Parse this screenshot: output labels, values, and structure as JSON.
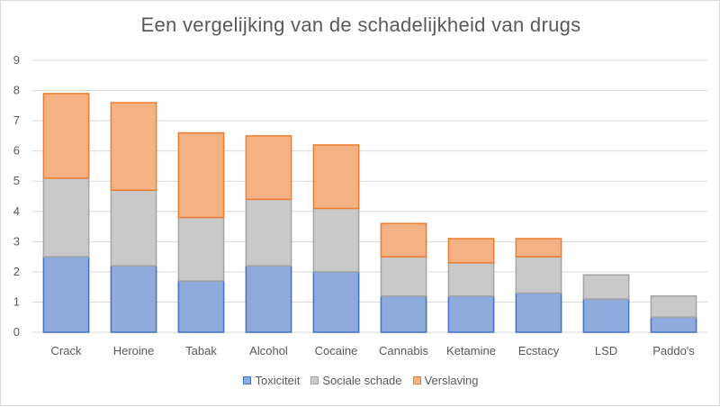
{
  "chart_data": {
    "type": "bar",
    "stacked": true,
    "title": "Een vergelijking van de schadelijkheid van drugs",
    "xlabel": "",
    "ylabel": "",
    "ylim": [
      0,
      9
    ],
    "yticks": [
      0,
      1,
      2,
      3,
      4,
      5,
      6,
      7,
      8,
      9
    ],
    "grid": true,
    "legend_position": "bottom",
    "categories": [
      "Crack",
      "Heroine",
      "Tabak",
      "Alcohol",
      "Cocaine",
      "Cannabis",
      "Ketamine",
      "Ecstacy",
      "LSD",
      "Paddo's"
    ],
    "series": [
      {
        "name": "Toxiciteit",
        "color": "#8faadc",
        "stroke": "#4472c4",
        "values": [
          2.5,
          2.2,
          1.7,
          2.2,
          2.0,
          1.2,
          1.2,
          1.3,
          1.1,
          0.5
        ]
      },
      {
        "name": "Sociale schade",
        "color": "#c9c9c9",
        "stroke": "#a5a5a5",
        "values": [
          2.6,
          2.5,
          2.1,
          2.2,
          2.1,
          1.3,
          1.1,
          1.2,
          0.8,
          0.7
        ]
      },
      {
        "name": "Verslaving",
        "color": "#f4b183",
        "stroke": "#ed7d31",
        "values": [
          2.8,
          2.9,
          2.8,
          2.1,
          2.1,
          1.1,
          0.8,
          0.6,
          0.0,
          0.0
        ]
      }
    ]
  }
}
